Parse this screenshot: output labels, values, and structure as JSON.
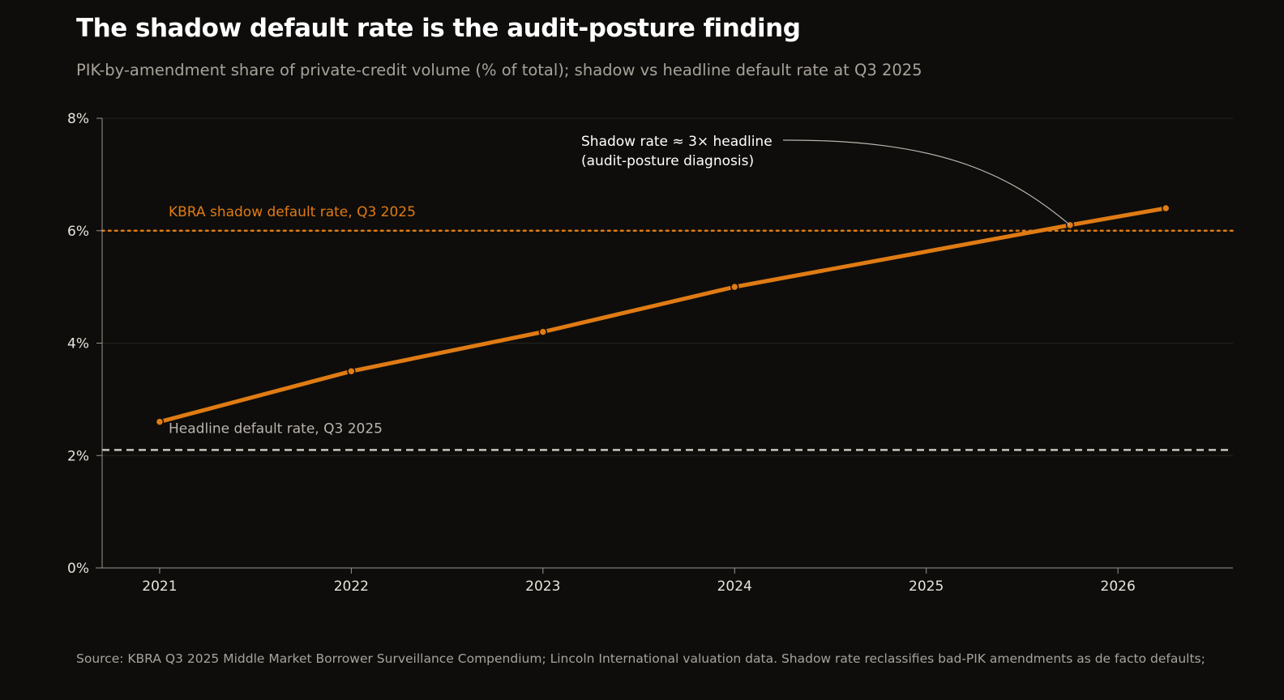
{
  "title": "The shadow default rate is the audit-posture finding",
  "subtitle": "PIK-by-amendment share of private-credit volume (% of total); shadow vs headline default rate at Q3 2025",
  "source": "Source: KBRA Q3 2025 Middle Market Borrower Surveillance Compendium; Lincoln International valuation data. Shadow rate reclassifies bad-PIK amendments as de facto defaults;",
  "colors": {
    "background": "#0e0d0b",
    "series": "#e07b14",
    "headline_line": "#c9c5bd",
    "grid": "#262420",
    "axis": "#9a968e",
    "annotation_leader": "#b8b4ac"
  },
  "chart_data": {
    "type": "line",
    "x": [
      2021.0,
      2022.0,
      2023.0,
      2024.0,
      2025.75,
      2026.25
    ],
    "series": [
      {
        "values": [
          2.6,
          3.5,
          4.2,
          5.0,
          6.1,
          6.4
        ]
      }
    ],
    "xlim": [
      2020.7,
      2026.6
    ],
    "ylim": [
      0,
      8
    ],
    "xticks": [
      2021,
      2022,
      2023,
      2024,
      2025,
      2026
    ],
    "xtick_labels": [
      "2021",
      "2022",
      "2023",
      "2024",
      "2025",
      "2026"
    ],
    "yticks": [
      0,
      2,
      4,
      6,
      8
    ],
    "ytick_labels": [
      "0%",
      "2%",
      "4%",
      "6%",
      "8%"
    ],
    "grid": true,
    "xlabel": "",
    "ylabel": "",
    "reference_lines": [
      {
        "label": "KBRA shadow default rate, Q3 2025",
        "value": 6.0,
        "style": "dotted",
        "color": "#e07b14"
      },
      {
        "label": "Headline default rate, Q3 2025",
        "value": 2.1,
        "style": "dashed",
        "color": "#c9c5bd"
      }
    ],
    "annotations": [
      {
        "lines": [
          "Shadow rate ≈ 3× headline",
          "(audit-posture diagnosis)"
        ],
        "target_x": 2025.75,
        "target_y": 6.1
      }
    ]
  }
}
